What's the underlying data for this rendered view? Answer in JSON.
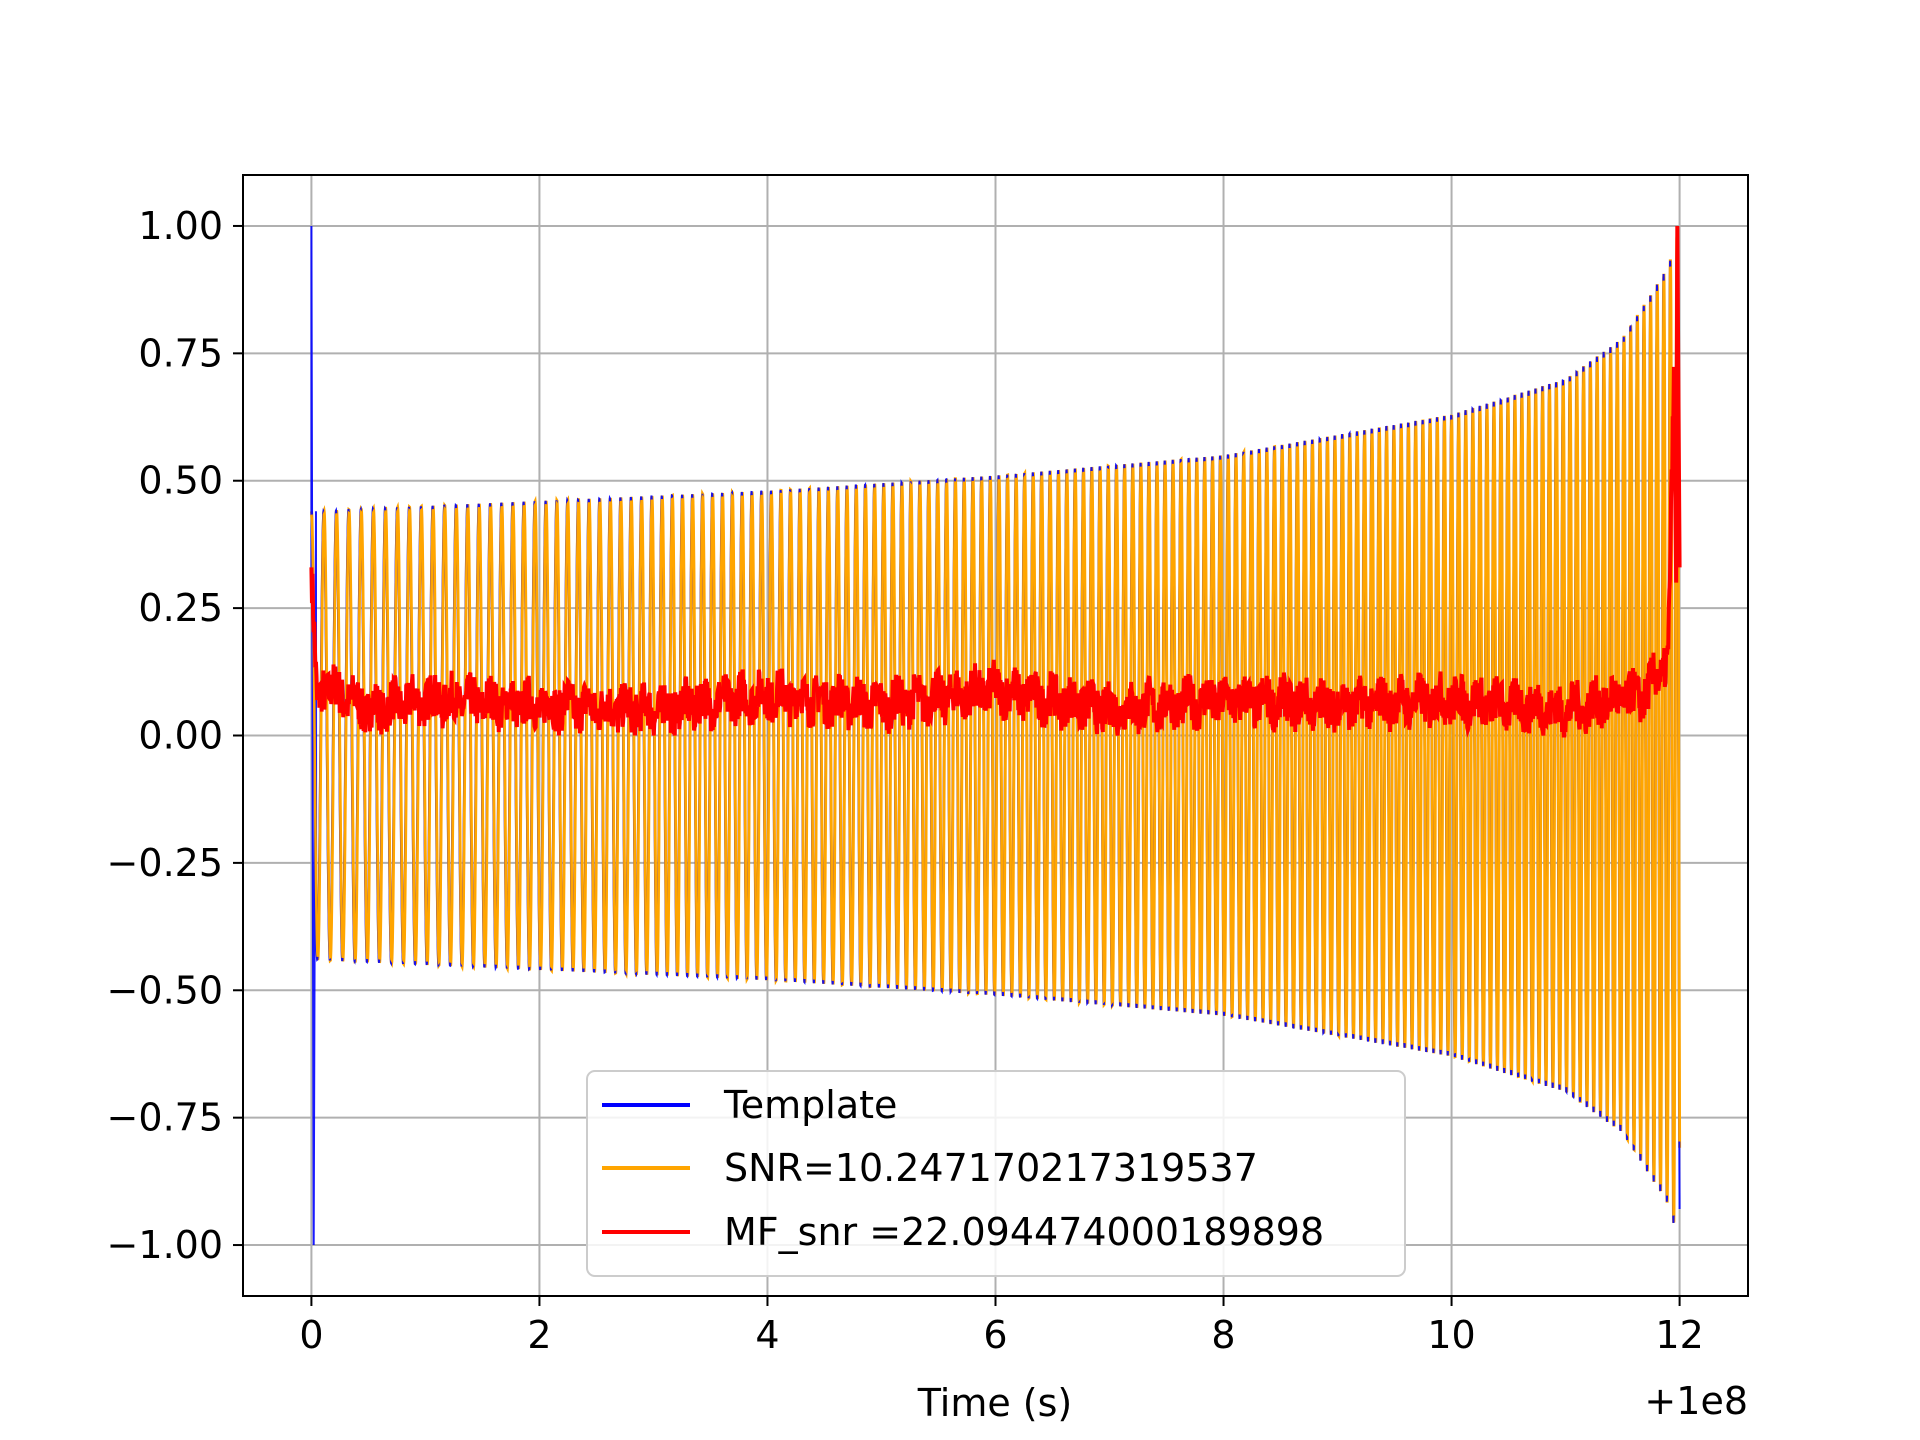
{
  "chart_data": {
    "type": "line",
    "xlabel": "Time (s)",
    "ylabel": "",
    "x_offset_label": "+1e8",
    "xlim": [
      -0.6,
      12.6
    ],
    "ylim": [
      -1.1,
      1.1
    ],
    "grid": true,
    "legend_position": "lower center",
    "x_ticks": [
      0,
      2,
      4,
      6,
      8,
      10,
      12
    ],
    "x_tick_labels": [
      "0",
      "2",
      "4",
      "6",
      "8",
      "10",
      "12"
    ],
    "y_ticks": [
      1.0,
      0.75,
      0.5,
      0.25,
      0.0,
      -0.25,
      -0.5,
      -0.75,
      -1.0
    ],
    "y_tick_labels": [
      "1.00",
      "0.75",
      "0.50",
      "0.25",
      "0.00",
      "−0.25",
      "−0.50",
      "−0.75",
      "−1.00"
    ],
    "series": [
      {
        "name": "Template",
        "color": "#0000ff",
        "description": "Chirp template: brief spike to +1.00 / -1.00 at t=0, then oscillation with growing amplitude up to t=12",
        "x": [
          0.0,
          0.02,
          0.04,
          0.5,
          2.0,
          4.0,
          6.0,
          8.0,
          10.0,
          11.0,
          11.5,
          11.9,
          12.0
        ],
        "envelope": [
          1.0,
          1.0,
          0.44,
          0.445,
          0.46,
          0.48,
          0.51,
          0.55,
          0.63,
          0.7,
          0.78,
          0.92,
          1.0
        ]
      },
      {
        "name": "SNR=10.247170217319537",
        "color": "#ffa500",
        "description": "Data (noisy chirp) with envelope growing from ~0.44 to 1.00 at t=12",
        "x": [
          0.0,
          0.5,
          2.0,
          4.0,
          6.0,
          8.0,
          10.0,
          11.0,
          11.5,
          11.9,
          12.0
        ],
        "envelope": [
          0.44,
          0.445,
          0.46,
          0.48,
          0.51,
          0.55,
          0.63,
          0.7,
          0.78,
          0.92,
          1.0
        ]
      },
      {
        "name": "MF_snr =22.094474000189898",
        "color": "#ff0000",
        "description": "Matched-filter SNR: ~0.33 at t=0, noise floor 0.00-0.16 across the window, sharp peak 1.00 at t=12",
        "x": [
          0.0,
          0.05,
          0.1,
          0.5,
          1.0,
          2.0,
          3.0,
          4.0,
          5.0,
          6.0,
          7.0,
          8.0,
          9.0,
          10.0,
          11.0,
          11.7,
          11.9,
          11.98,
          12.0
        ],
        "y": [
          0.33,
          0.05,
          0.1,
          0.05,
          0.07,
          0.06,
          0.05,
          0.08,
          0.06,
          0.09,
          0.05,
          0.07,
          0.06,
          0.07,
          0.05,
          0.08,
          0.15,
          1.0,
          0.33
        ]
      }
    ]
  }
}
